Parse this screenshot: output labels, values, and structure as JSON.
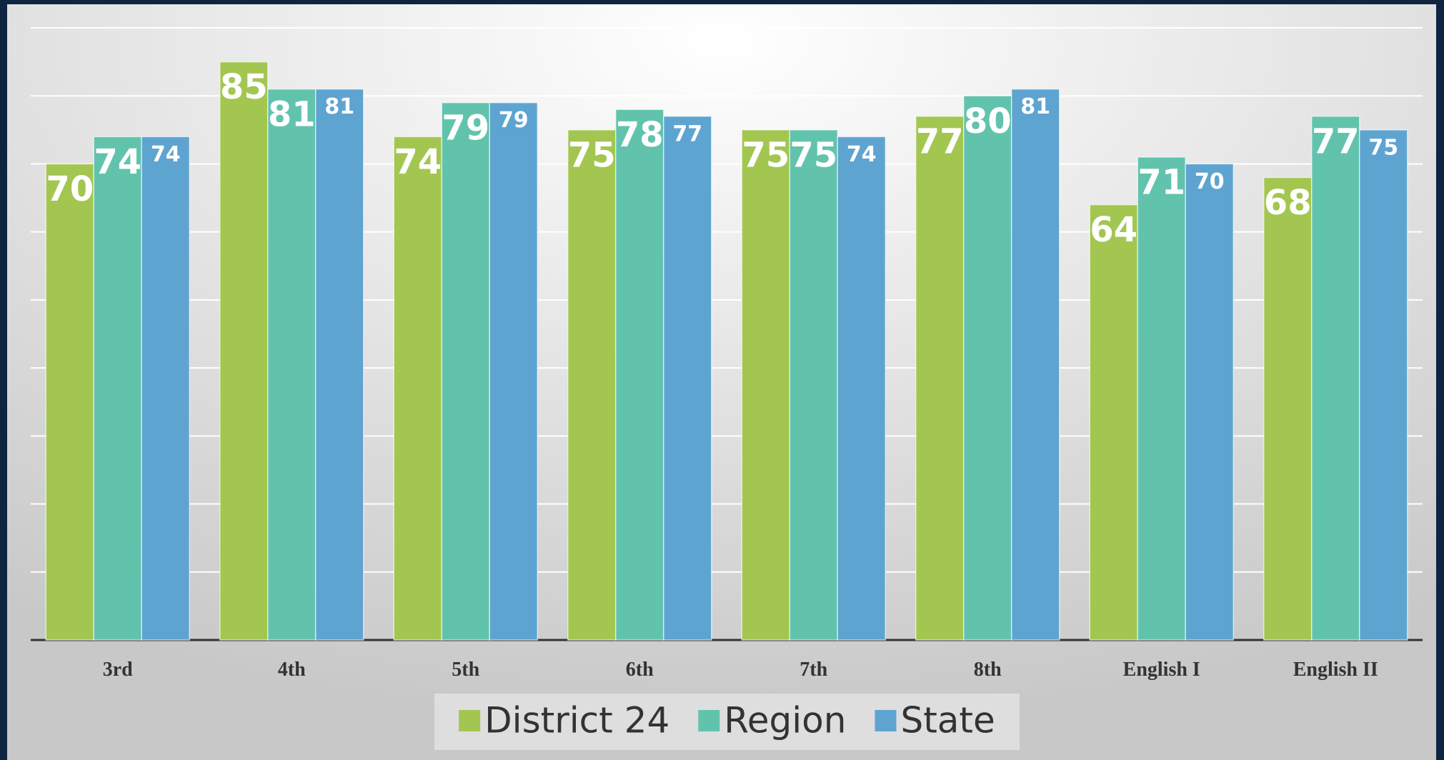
{
  "chart_data": {
    "type": "bar",
    "categories": [
      "3rd",
      "4th",
      "5th",
      "6th",
      "7th",
      "8th",
      "English I",
      "English II"
    ],
    "series": [
      {
        "name": "District 24",
        "color": "#a3c651",
        "values": [
          70,
          85,
          74,
          75,
          75,
          77,
          64,
          68
        ]
      },
      {
        "name": "Region",
        "color": "#62c3ad",
        "values": [
          74,
          81,
          79,
          78,
          75,
          80,
          71,
          77
        ]
      },
      {
        "name": "State",
        "color": "#5ea4d1",
        "values": [
          74,
          81,
          79,
          77,
          74,
          81,
          70,
          75
        ]
      }
    ],
    "ylim": [
      0,
      90
    ],
    "yticks": [
      0,
      10,
      20,
      30,
      40,
      50,
      60,
      70,
      80,
      90
    ],
    "grid": true,
    "legend": "bottom"
  }
}
